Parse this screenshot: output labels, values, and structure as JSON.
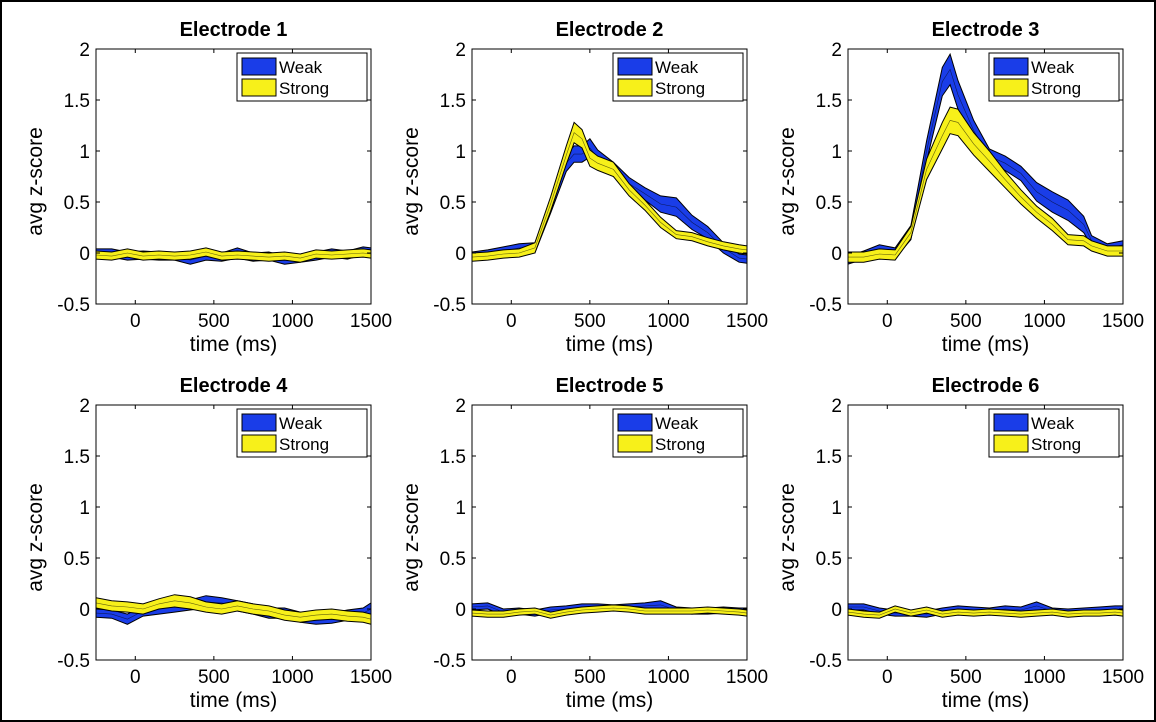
{
  "figure": {
    "colors": {
      "weak": "#1a3de8",
      "strong": "#f7f01a",
      "outline": "#000000"
    },
    "legend_labels": [
      "Weak",
      "Strong"
    ],
    "legend_placement": "top-right"
  },
  "chart_data": [
    {
      "type": "area",
      "title": "Electrode 1",
      "xlabel": "time (ms)",
      "ylabel": "avg z-score",
      "xlim": [
        -250,
        1500
      ],
      "ylim": [
        -0.5,
        2
      ],
      "xticks": [
        0,
        500,
        1000,
        1500
      ],
      "yticks": [
        -0.5,
        0,
        0.5,
        1,
        1.5,
        2
      ],
      "xtick_labels": [
        "0",
        "500",
        "1000",
        "1500"
      ],
      "ytick_labels": [
        "-0.5",
        "0",
        "0.5",
        "1",
        "1.5",
        "2"
      ],
      "x": [
        -250,
        -150,
        -50,
        50,
        150,
        250,
        350,
        450,
        550,
        650,
        750,
        850,
        950,
        1050,
        1150,
        1250,
        1350,
        1450,
        1500
      ],
      "series": [
        {
          "name": "Weak",
          "mean": [
            0.0,
            0.0,
            -0.03,
            -0.02,
            -0.03,
            -0.03,
            -0.07,
            -0.03,
            -0.04,
            0.0,
            -0.04,
            -0.03,
            -0.07,
            -0.05,
            -0.03,
            0.0,
            -0.02,
            0.02,
            0.01
          ],
          "halfwidth": [
            0.04,
            0.04,
            0.04,
            0.04,
            0.04,
            0.04,
            0.04,
            0.04,
            0.04,
            0.05,
            0.04,
            0.04,
            0.04,
            0.04,
            0.04,
            0.04,
            0.04,
            0.04,
            0.04
          ]
        },
        {
          "name": "Strong",
          "mean": [
            -0.02,
            -0.03,
            0.0,
            -0.03,
            -0.02,
            -0.03,
            -0.02,
            0.01,
            -0.03,
            -0.02,
            -0.03,
            -0.04,
            -0.03,
            -0.05,
            -0.01,
            -0.02,
            -0.01,
            0.0,
            -0.01
          ],
          "halfwidth": [
            0.04,
            0.04,
            0.04,
            0.04,
            0.04,
            0.04,
            0.04,
            0.04,
            0.04,
            0.04,
            0.04,
            0.04,
            0.04,
            0.04,
            0.04,
            0.04,
            0.04,
            0.04,
            0.04
          ]
        }
      ]
    },
    {
      "type": "area",
      "title": "Electrode 2",
      "xlabel": "time (ms)",
      "ylabel": "avg z-score",
      "xlim": [
        -250,
        1500
      ],
      "ylim": [
        -0.5,
        2
      ],
      "xticks": [
        0,
        500,
        1000,
        1500
      ],
      "yticks": [
        -0.5,
        0,
        0.5,
        1,
        1.5,
        2
      ],
      "xtick_labels": [
        "0",
        "500",
        "1000",
        "1500"
      ],
      "ytick_labels": [
        "-0.5",
        "0",
        "0.5",
        "1",
        "1.5",
        "2"
      ],
      "x": [
        -250,
        -150,
        -50,
        50,
        150,
        250,
        350,
        400,
        450,
        500,
        550,
        650,
        750,
        850,
        950,
        1050,
        1150,
        1250,
        1350,
        1450,
        1500
      ],
      "series": [
        {
          "name": "Weak",
          "mean": [
            -0.02,
            0.0,
            0.02,
            0.05,
            0.05,
            0.45,
            0.88,
            0.97,
            0.97,
            1.03,
            0.93,
            0.82,
            0.68,
            0.58,
            0.48,
            0.45,
            0.3,
            0.2,
            0.05,
            -0.05,
            -0.06
          ],
          "halfwidth": [
            0.03,
            0.03,
            0.04,
            0.04,
            0.05,
            0.06,
            0.08,
            0.08,
            0.08,
            0.09,
            0.08,
            0.07,
            0.06,
            0.06,
            0.08,
            0.09,
            0.07,
            0.06,
            0.05,
            0.04,
            0.04
          ]
        },
        {
          "name": "Strong",
          "mean": [
            -0.04,
            -0.03,
            -0.01,
            0.0,
            0.05,
            0.48,
            0.96,
            1.18,
            1.12,
            0.93,
            0.88,
            0.82,
            0.62,
            0.47,
            0.3,
            0.18,
            0.16,
            0.11,
            0.07,
            0.04,
            0.03
          ],
          "halfwidth": [
            0.04,
            0.04,
            0.04,
            0.04,
            0.05,
            0.07,
            0.09,
            0.1,
            0.09,
            0.08,
            0.07,
            0.07,
            0.06,
            0.05,
            0.05,
            0.04,
            0.04,
            0.04,
            0.04,
            0.04,
            0.04
          ]
        }
      ]
    },
    {
      "type": "area",
      "title": "Electrode 3",
      "xlabel": "time (ms)",
      "ylabel": "avg z-score",
      "xlim": [
        -250,
        1500
      ],
      "ylim": [
        -0.5,
        2
      ],
      "xticks": [
        0,
        500,
        1000,
        1500
      ],
      "yticks": [
        -0.5,
        0,
        0.5,
        1,
        1.5,
        2
      ],
      "xtick_labels": [
        "0",
        "500",
        "1000",
        "1500"
      ],
      "ytick_labels": [
        "-0.5",
        "0",
        "0.5",
        "1",
        "1.5",
        "2"
      ],
      "x": [
        -250,
        -150,
        -50,
        50,
        150,
        250,
        350,
        400,
        450,
        550,
        650,
        750,
        850,
        950,
        1050,
        1150,
        1250,
        1300,
        1400,
        1500
      ],
      "series": [
        {
          "name": "Weak",
          "mean": [
            -0.07,
            -0.02,
            0.03,
            0.0,
            0.2,
            1.0,
            1.68,
            1.8,
            1.55,
            1.2,
            0.95,
            0.88,
            0.78,
            0.6,
            0.5,
            0.42,
            0.28,
            0.12,
            0.05,
            0.08
          ],
          "halfwidth": [
            0.04,
            0.04,
            0.05,
            0.05,
            0.07,
            0.1,
            0.14,
            0.15,
            0.14,
            0.1,
            0.07,
            0.07,
            0.07,
            0.09,
            0.1,
            0.1,
            0.08,
            0.05,
            0.04,
            0.04
          ]
        },
        {
          "name": "Strong",
          "mean": [
            -0.04,
            -0.04,
            -0.01,
            -0.02,
            0.2,
            0.82,
            1.15,
            1.3,
            1.28,
            1.07,
            0.9,
            0.72,
            0.55,
            0.4,
            0.28,
            0.13,
            0.12,
            0.07,
            0.02,
            0.02
          ],
          "halfwidth": [
            0.05,
            0.05,
            0.05,
            0.05,
            0.06,
            0.1,
            0.13,
            0.13,
            0.13,
            0.11,
            0.1,
            0.08,
            0.07,
            0.06,
            0.06,
            0.05,
            0.05,
            0.05,
            0.05,
            0.05
          ]
        }
      ]
    },
    {
      "type": "area",
      "title": "Electrode 4",
      "xlabel": "time (ms)",
      "ylabel": "avg z-score",
      "xlim": [
        -250,
        1500
      ],
      "ylim": [
        -0.5,
        2
      ],
      "xticks": [
        0,
        500,
        1000,
        1500
      ],
      "yticks": [
        -0.5,
        0,
        0.5,
        1,
        1.5,
        2
      ],
      "xtick_labels": [
        "0",
        "500",
        "1000",
        "1500"
      ],
      "ytick_labels": [
        "-0.5",
        "0",
        "0.5",
        "1",
        "1.5",
        "2"
      ],
      "x": [
        -250,
        -150,
        -50,
        50,
        150,
        250,
        350,
        450,
        550,
        650,
        750,
        850,
        950,
        1050,
        1150,
        1250,
        1350,
        1450,
        1500
      ],
      "series": [
        {
          "name": "Weak",
          "mean": [
            -0.04,
            -0.05,
            -0.1,
            -0.02,
            0.0,
            0.02,
            0.04,
            0.07,
            0.06,
            0.03,
            0.0,
            -0.04,
            -0.04,
            -0.08,
            -0.1,
            -0.09,
            -0.06,
            -0.04,
            0.0
          ],
          "halfwidth": [
            0.04,
            0.04,
            0.05,
            0.05,
            0.05,
            0.05,
            0.05,
            0.06,
            0.05,
            0.05,
            0.05,
            0.05,
            0.05,
            0.05,
            0.05,
            0.05,
            0.05,
            0.05,
            0.06
          ]
        },
        {
          "name": "Strong",
          "mean": [
            0.06,
            0.03,
            0.02,
            0.0,
            0.05,
            0.08,
            0.06,
            0.02,
            0.0,
            0.03,
            0.0,
            -0.02,
            -0.06,
            -0.08,
            -0.06,
            -0.05,
            -0.07,
            -0.08,
            -0.1
          ],
          "halfwidth": [
            0.05,
            0.05,
            0.05,
            0.05,
            0.05,
            0.06,
            0.06,
            0.05,
            0.05,
            0.05,
            0.05,
            0.05,
            0.05,
            0.05,
            0.05,
            0.05,
            0.05,
            0.05,
            0.05
          ]
        }
      ]
    },
    {
      "type": "area",
      "title": "Electrode 5",
      "xlabel": "time (ms)",
      "ylabel": "avg z-score",
      "xlim": [
        -250,
        1500
      ],
      "ylim": [
        -0.5,
        2
      ],
      "xticks": [
        0,
        500,
        1000,
        1500
      ],
      "yticks": [
        -0.5,
        0,
        0.5,
        1,
        1.5,
        2
      ],
      "xtick_labels": [
        "0",
        "500",
        "1000",
        "1500"
      ],
      "ytick_labels": [
        "-0.5",
        "0",
        "0.5",
        "1",
        "1.5",
        "2"
      ],
      "x": [
        -250,
        -150,
        -50,
        50,
        150,
        250,
        350,
        450,
        550,
        650,
        750,
        850,
        950,
        1050,
        1150,
        1250,
        1350,
        1450,
        1500
      ],
      "series": [
        {
          "name": "Weak",
          "mean": [
            0.02,
            0.03,
            -0.03,
            -0.02,
            -0.04,
            -0.01,
            0.0,
            0.02,
            0.02,
            0.01,
            0.02,
            0.03,
            0.04,
            -0.01,
            -0.02,
            -0.02,
            -0.01,
            -0.02,
            -0.02
          ],
          "halfwidth": [
            0.03,
            0.03,
            0.03,
            0.03,
            0.03,
            0.03,
            0.03,
            0.03,
            0.03,
            0.03,
            0.03,
            0.03,
            0.04,
            0.03,
            0.03,
            0.03,
            0.03,
            0.03,
            0.03
          ]
        },
        {
          "name": "Strong",
          "mean": [
            -0.04,
            -0.05,
            -0.05,
            -0.03,
            -0.02,
            -0.06,
            -0.03,
            -0.01,
            0.0,
            0.01,
            0.0,
            -0.02,
            -0.02,
            -0.02,
            -0.02,
            -0.01,
            -0.02,
            -0.03,
            -0.04
          ],
          "halfwidth": [
            0.03,
            0.03,
            0.03,
            0.03,
            0.03,
            0.03,
            0.03,
            0.03,
            0.03,
            0.03,
            0.03,
            0.03,
            0.03,
            0.03,
            0.03,
            0.03,
            0.03,
            0.03,
            0.03
          ]
        }
      ]
    },
    {
      "type": "area",
      "title": "Electrode 6",
      "xlabel": "time (ms)",
      "ylabel": "avg z-score",
      "xlim": [
        -250,
        1500
      ],
      "ylim": [
        -0.5,
        2
      ],
      "xticks": [
        0,
        500,
        1000,
        1500
      ],
      "yticks": [
        -0.5,
        0,
        0.5,
        1,
        1.5,
        2
      ],
      "xtick_labels": [
        "0",
        "500",
        "1000",
        "1500"
      ],
      "ytick_labels": [
        "-0.5",
        "0",
        "0.5",
        "1",
        "1.5",
        "2"
      ],
      "x": [
        -250,
        -150,
        -50,
        50,
        150,
        250,
        350,
        450,
        550,
        650,
        750,
        850,
        950,
        1050,
        1150,
        1250,
        1350,
        1450,
        1500
      ],
      "series": [
        {
          "name": "Weak",
          "mean": [
            0.02,
            0.02,
            -0.02,
            -0.04,
            -0.04,
            -0.05,
            -0.02,
            0.0,
            -0.01,
            -0.02,
            0.0,
            -0.01,
            0.03,
            -0.02,
            -0.03,
            -0.02,
            -0.01,
            0.0,
            0.0
          ],
          "halfwidth": [
            0.03,
            0.03,
            0.03,
            0.03,
            0.03,
            0.03,
            0.03,
            0.03,
            0.03,
            0.03,
            0.03,
            0.03,
            0.04,
            0.03,
            0.03,
            0.03,
            0.03,
            0.03,
            0.03
          ]
        },
        {
          "name": "Strong",
          "mean": [
            -0.03,
            -0.05,
            -0.06,
            0.0,
            -0.04,
            -0.01,
            -0.05,
            -0.03,
            -0.04,
            -0.03,
            -0.04,
            -0.05,
            -0.04,
            -0.03,
            -0.05,
            -0.04,
            -0.04,
            -0.03,
            -0.04
          ],
          "halfwidth": [
            0.03,
            0.03,
            0.03,
            0.03,
            0.03,
            0.03,
            0.03,
            0.03,
            0.03,
            0.03,
            0.03,
            0.03,
            0.03,
            0.03,
            0.03,
            0.03,
            0.03,
            0.03,
            0.03
          ]
        }
      ]
    }
  ]
}
